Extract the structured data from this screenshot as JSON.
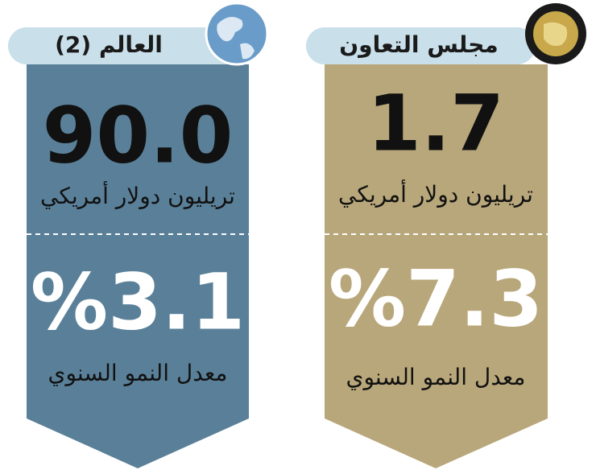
{
  "panels": [
    {
      "header": "العالم (2)",
      "value": "90.0",
      "unit": "تريليون دولار أمريكي",
      "growth": "%3.1",
      "growth_label": "معدل النمو السنوي"
    },
    {
      "header": "مجلس التعاون",
      "value": "1.7",
      "unit": "تريليون دولار أمريكي",
      "growth": "%7.3",
      "growth_label": "معدل النمو السنوي"
    }
  ]
}
